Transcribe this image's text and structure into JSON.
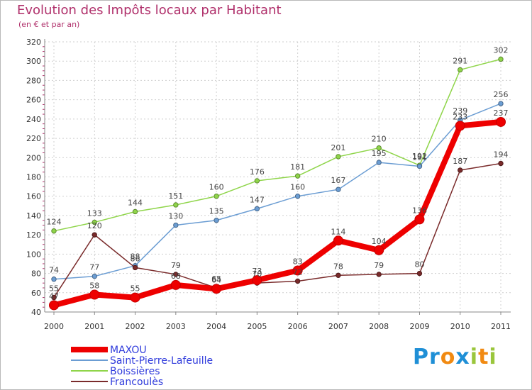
{
  "header": {
    "title": "Evolution des Impôts locaux par Habitant",
    "subtitle": "(en € et par an)"
  },
  "logo": {
    "text": "Proxiti",
    "letters": [
      "P",
      "r",
      "o",
      "x",
      "i",
      "t",
      "i"
    ],
    "colors": [
      "#1f8fd6",
      "#1f8fd6",
      "#f18a12",
      "#1f8fd6",
      "#9ac63c",
      "#f18a12",
      "#9ac63c"
    ]
  },
  "chart_data": {
    "type": "line",
    "title": "Evolution des Impôts locaux par Habitant",
    "subtitle": "(en € et par an)",
    "xlabel": "",
    "ylabel": "",
    "ylim": [
      40,
      320
    ],
    "yticks": [
      "40",
      "60",
      "80",
      "100",
      "120",
      "140",
      "160",
      "180",
      "200",
      "220",
      "240",
      "260",
      "280",
      "300",
      "320"
    ],
    "categories": [
      "2000",
      "2001",
      "2002",
      "2003",
      "2004",
      "2005",
      "2006",
      "2007",
      "2008",
      "2009",
      "2010",
      "2011"
    ],
    "grid": true,
    "legend_position": "bottom-left",
    "series": [
      {
        "name": "Boissières",
        "color": "#8fd54a",
        "values": [
          124,
          133,
          144,
          151,
          160,
          176,
          181,
          201,
          210,
          192,
          291,
          302
        ],
        "labels": [
          "124",
          "133",
          "144",
          "151",
          "160",
          "176",
          "181",
          "201",
          "210",
          "192",
          "291",
          "302"
        ]
      },
      {
        "name": "Saint-Pierre-Lafeuille",
        "color": "#6b9dd3",
        "values": [
          74,
          77,
          88,
          130,
          135,
          147,
          160,
          167,
          195,
          191,
          239,
          256
        ],
        "labels": [
          "74",
          "77",
          "88",
          "130",
          "135",
          "147",
          "160",
          "167",
          "195",
          "191",
          "239",
          "256"
        ]
      },
      {
        "name": "Francoulès",
        "color": "#7a2b2b",
        "values": [
          55,
          120,
          86,
          79,
          65,
          70,
          72,
          78,
          79,
          80,
          187,
          194
        ],
        "labels": [
          "55",
          "120",
          "86",
          "79",
          "65",
          "70",
          "72",
          "78",
          "79",
          "80",
          "187",
          "194"
        ]
      },
      {
        "name": "MAXOU",
        "color": "#ee0000",
        "values": [
          47,
          58,
          55,
          68,
          64,
          73,
          83,
          114,
          104,
          136,
          233,
          237
        ],
        "labels": [
          "47",
          "58",
          "55",
          "68",
          "64",
          "73",
          "83",
          "114",
          "104",
          "136",
          "233",
          "237"
        ]
      }
    ],
    "legend_order": [
      "MAXOU",
      "Saint-Pierre-Lafeuille",
      "Boissières",
      "Francoulès"
    ]
  }
}
